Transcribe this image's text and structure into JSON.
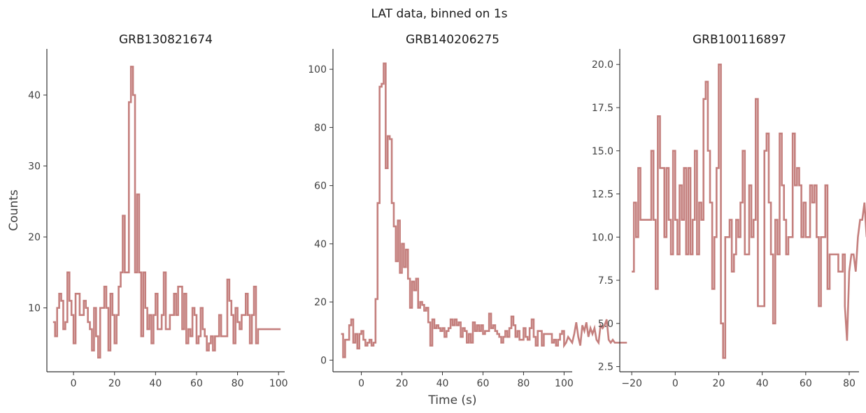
{
  "suptitle": "LAT data, binned on 1s",
  "style": {
    "line_color": "#c47f7d",
    "text_color": "#404040"
  },
  "chart_data": [
    {
      "type": "line",
      "step": true,
      "title": "GRB130821674",
      "xlabel": "",
      "ylabel": "Counts",
      "xlim": [
        -13,
        103
      ],
      "ylim": [
        1,
        46.5
      ],
      "xticks": [
        0,
        20,
        40,
        60,
        80,
        100
      ],
      "yticks": [
        10,
        20,
        30,
        40
      ],
      "x_start": -10,
      "x_step": 1,
      "values": [
        8,
        6,
        10,
        12,
        11,
        7,
        8,
        15,
        11,
        9,
        5,
        12,
        12,
        9,
        9,
        11,
        10,
        8,
        7,
        4,
        10,
        6,
        3,
        10,
        10,
        13,
        10,
        4,
        12,
        9,
        5,
        9,
        13,
        15,
        23,
        15,
        15,
        39,
        44,
        40,
        15,
        26,
        15,
        6,
        15,
        10,
        7,
        9,
        5,
        9,
        12,
        7,
        7,
        9,
        15,
        7,
        7,
        9,
        9,
        12,
        9,
        13,
        13,
        7,
        12,
        5,
        7,
        6,
        10,
        9,
        5,
        6,
        10,
        7,
        6,
        4,
        5,
        6,
        4,
        6,
        6,
        9,
        6,
        6,
        6,
        14,
        11,
        9,
        5,
        10,
        8,
        7,
        9,
        9,
        12,
        9,
        5,
        9,
        13,
        5,
        7,
        7,
        7,
        7,
        7,
        7,
        7,
        7,
        7,
        7,
        7,
        7
      ],
      "x_end": 100
    },
    {
      "type": "line",
      "step": true,
      "title": "GRB140206275",
      "xlabel": "Time (s)",
      "ylabel": "",
      "xlim": [
        -14,
        104
      ],
      "ylim": [
        -4,
        107
      ],
      "xticks": [
        0,
        20,
        40,
        60,
        80,
        100
      ],
      "yticks": [
        0,
        20,
        40,
        60,
        80,
        100
      ],
      "x_start": -10,
      "x_step": 1,
      "values": [
        9,
        1,
        7,
        7,
        12,
        14,
        6,
        9,
        4,
        9,
        10,
        7,
        5,
        6,
        7,
        5,
        6,
        21,
        54,
        94,
        95,
        102,
        66,
        77,
        76,
        54,
        46,
        34,
        48,
        30,
        40,
        32,
        38,
        28,
        18,
        27,
        24,
        28,
        18,
        20,
        19,
        17,
        18,
        13,
        5,
        14,
        11,
        12,
        11,
        10,
        11,
        8,
        10,
        11,
        14,
        12,
        14,
        12,
        13,
        8,
        11,
        10,
        6,
        9,
        6,
        13,
        10,
        12,
        10,
        12,
        9,
        10,
        10,
        16,
        11,
        12,
        10,
        9,
        8,
        6,
        8,
        10,
        8,
        11,
        15,
        12,
        8,
        10,
        7,
        7,
        11,
        8,
        7,
        11,
        14,
        8,
        5,
        10,
        10,
        5,
        9,
        9,
        9,
        9,
        6,
        7,
        5,
        7,
        9,
        10,
        5,
        6,
        8,
        7,
        6,
        9,
        13,
        8,
        5,
        12,
        10,
        13,
        8,
        11,
        9,
        11,
        7,
        6,
        12,
        11,
        12,
        14,
        7,
        6,
        7,
        6,
        6,
        6,
        6,
        6,
        6,
        6
      ],
      "x_end": 100
    },
    {
      "type": "line",
      "step": true,
      "title": "GRB100116897",
      "xlabel": "",
      "ylabel": "",
      "xlim": [
        -25.5,
        84.5
      ],
      "ylim": [
        2.2,
        20.9
      ],
      "xticks": [
        -20,
        0,
        20,
        40,
        60,
        80
      ],
      "yticks": [
        2.5,
        5.0,
        7.5,
        10.0,
        12.5,
        15.0,
        17.5,
        20.0
      ],
      "x_start": -20,
      "x_step": 1,
      "values": [
        8,
        12,
        10,
        14,
        11,
        11,
        11,
        11,
        11,
        15,
        11,
        7,
        17,
        14,
        14,
        10,
        14,
        11,
        9,
        15,
        11,
        9,
        13,
        11,
        14,
        9,
        14,
        9,
        11,
        15,
        9,
        12,
        11,
        18,
        19,
        15,
        12,
        7,
        10,
        14,
        20,
        5,
        3,
        10,
        10,
        11,
        8,
        9,
        11,
        10,
        12,
        15,
        9,
        9,
        13,
        10,
        11,
        18,
        6,
        6,
        6,
        15,
        16,
        12,
        9,
        5,
        11,
        9,
        16,
        13,
        11,
        9,
        10,
        10,
        16,
        13,
        14,
        13,
        10,
        12,
        10,
        10,
        13,
        12,
        13,
        10,
        6,
        10,
        10,
        13,
        7,
        9,
        9,
        9,
        9,
        8,
        8,
        9,
        6,
        4,
        8,
        9,
        9,
        8,
        10,
        11,
        11,
        12,
        10,
        11,
        13,
        11,
        9,
        10,
        10,
        11,
        11,
        14,
        5,
        10,
        11,
        14,
        13,
        14,
        6,
        6
      ],
      "x_end": 78
    }
  ]
}
